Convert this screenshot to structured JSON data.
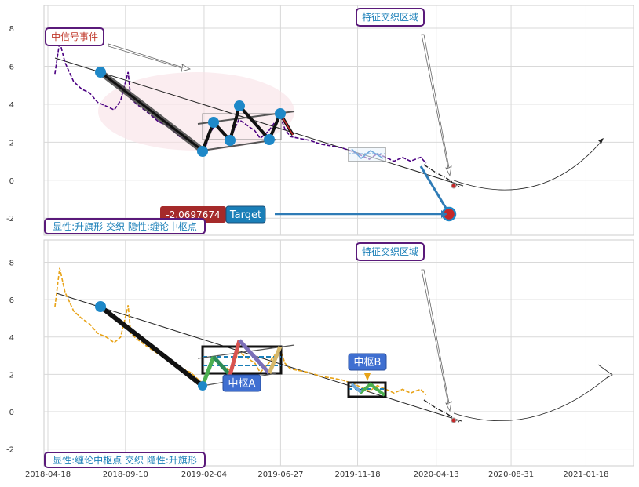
{
  "chart_data": [
    {
      "type": "line",
      "panel": "top",
      "ylim": [
        -2.9,
        9.2
      ],
      "y_ticks": [
        8,
        6,
        4,
        2,
        0,
        -2
      ],
      "x_ticks": [
        "2018-04-18",
        "2018-09-10",
        "2019-02-04",
        "2019-06-27",
        "2019-11-18",
        "2020-04-13",
        "2020-08-31",
        "2021-01-18"
      ],
      "grid": true,
      "annotations": {
        "event_label": "中信号事件",
        "region_label": "特征交织区域",
        "target_value_label": "-2.0697674",
        "target_label": "Target",
        "legend_text": "显性:升旗形 交织 隐性:缠论中枢点"
      },
      "series": [
        {
          "color": "#4b0082",
          "x": [
            "2018-05-01",
            "2018-05-10",
            "2018-05-20",
            "2018-06-05",
            "2018-06-20",
            "2018-07-05",
            "2018-07-20",
            "2018-08-05",
            "2018-08-20",
            "2018-09-01",
            "2018-09-15",
            "2018-09-20",
            "2018-10-01",
            "2018-10-20",
            "2018-11-10",
            "2018-12-01",
            "2018-12-20",
            "2019-01-10",
            "2019-01-25",
            "2019-02-04",
            "2019-02-15",
            "2019-02-25",
            "2019-03-10",
            "2019-03-25",
            "2019-04-10",
            "2019-04-25",
            "2019-05-10",
            "2019-05-20",
            "2019-06-05",
            "2019-06-15",
            "2019-06-27",
            "2019-07-05",
            "2019-07-15",
            "2019-08-01",
            "2019-08-20",
            "2019-09-10",
            "2019-10-01",
            "2019-10-20",
            "2019-11-10",
            "2019-11-25",
            "2019-12-10",
            "2019-12-25",
            "2020-01-10",
            "2020-01-25",
            "2020-02-10",
            "2020-02-25",
            "2020-03-05",
            "2020-03-15",
            "2020-03-25"
          ],
          "values": [
            5.6,
            7.3,
            6.2,
            5.2,
            4.8,
            4.6,
            4.1,
            3.9,
            3.7,
            4.2,
            5.7,
            4.3,
            4.0,
            3.6,
            3.1,
            2.8,
            2.3,
            2.1,
            1.7,
            1.5,
            2.5,
            2.9,
            2.5,
            2.2,
            3.2,
            2.9,
            2.6,
            2.2,
            2.6,
            3.0,
            3.3,
            2.7,
            2.3,
            2.2,
            2.1,
            1.9,
            1.8,
            1.7,
            1.5,
            1.3,
            1.1,
            1.4,
            1.2,
            1.0,
            1.2,
            1.0,
            1.1,
            1.2,
            0.9
          ]
        }
      ]
    },
    {
      "type": "line",
      "panel": "bottom",
      "ylim": [
        -2.9,
        9.2
      ],
      "y_ticks": [
        8,
        6,
        4,
        2,
        0,
        -2
      ],
      "x_ticks": [
        "2018-04-18",
        "2018-09-10",
        "2019-02-04",
        "2019-06-27",
        "2019-11-18",
        "2020-04-13",
        "2020-08-31",
        "2021-01-18"
      ],
      "grid": true,
      "annotations": {
        "region_label": "特征交织区域",
        "pivot_a_label": "中枢A",
        "pivot_b_label": "中枢B",
        "legend_text": "显性:缠论中枢点 交织 隐性:升旗形"
      },
      "series": [
        {
          "color": "#e8a317",
          "x": [
            "2018-05-01",
            "2018-05-10",
            "2018-05-20",
            "2018-06-05",
            "2018-06-20",
            "2018-07-05",
            "2018-07-20",
            "2018-08-05",
            "2018-08-20",
            "2018-09-01",
            "2018-09-15",
            "2018-09-20",
            "2018-10-01",
            "2018-10-20",
            "2018-11-10",
            "2018-12-01",
            "2018-12-20",
            "2019-01-10",
            "2019-01-25",
            "2019-02-04",
            "2019-02-15",
            "2019-02-25",
            "2019-03-10",
            "2019-03-25",
            "2019-04-10",
            "2019-04-25",
            "2019-05-10",
            "2019-05-20",
            "2019-06-05",
            "2019-06-15",
            "2019-06-27",
            "2019-07-05",
            "2019-07-15",
            "2019-08-01",
            "2019-08-20",
            "2019-09-10",
            "2019-10-01",
            "2019-10-20",
            "2019-11-10",
            "2019-11-25",
            "2019-12-10",
            "2019-12-25",
            "2020-01-10",
            "2020-01-25",
            "2020-02-10",
            "2020-02-25",
            "2020-03-05",
            "2020-03-15",
            "2020-03-25"
          ],
          "values": [
            5.6,
            7.7,
            6.4,
            5.4,
            5.0,
            4.7,
            4.2,
            4.0,
            3.7,
            4.0,
            5.7,
            4.2,
            3.9,
            3.5,
            3.1,
            2.8,
            2.4,
            2.1,
            1.7,
            1.5,
            2.6,
            2.9,
            2.5,
            2.2,
            3.2,
            2.9,
            2.6,
            2.1,
            2.6,
            3.0,
            3.3,
            2.6,
            2.3,
            2.2,
            2.1,
            1.9,
            1.8,
            1.7,
            1.5,
            1.3,
            1.1,
            1.4,
            1.2,
            1.0,
            1.2,
            1.0,
            1.1,
            1.2,
            0.9
          ]
        }
      ]
    }
  ]
}
